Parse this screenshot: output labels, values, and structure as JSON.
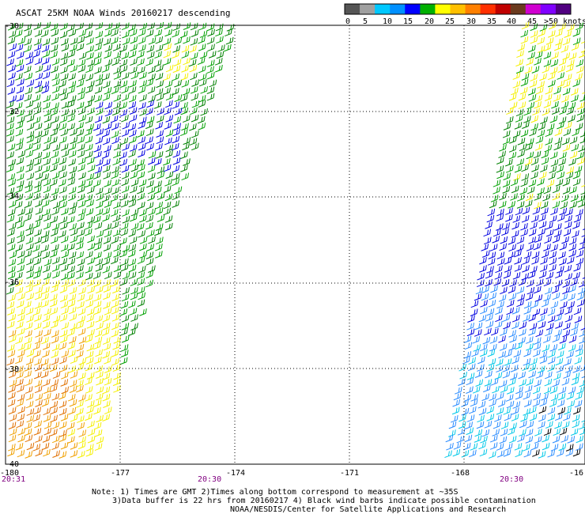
{
  "title": "ASCAT 25KM NOAA Winds 20160217 descending",
  "legend": {
    "unit_label": ">50 knots",
    "ticks": [
      "0",
      "5",
      "10",
      "15",
      "20",
      "25",
      "30",
      "35",
      "40",
      "45"
    ],
    "colors": [
      "#555555",
      "#a0a0a0",
      "#00c8ff",
      "#0090ff",
      "#0000ff",
      "#00b000",
      "#ffff00",
      "#ffc000",
      "#ff8000",
      "#ff3000",
      "#c00000",
      "#6b3a1e",
      "#d000d0",
      "#8000ff",
      "#500080"
    ]
  },
  "map": {
    "lat_labels": [
      "-30",
      "-32",
      "-34",
      "-36",
      "-38",
      "-40"
    ],
    "lon_labels": [
      "-180",
      "-177",
      "-174",
      "-171",
      "-168",
      "-16"
    ],
    "time_labels": [
      "20:31",
      "20:30",
      "20:30"
    ]
  },
  "notes": {
    "line1": "Note: 1) Times are GMT 2)Times along bottom correspond to measurement at ~35S",
    "line2": "3)Data buffer is 22 hrs from 20160217 4) Black wind barbs indicate possible contamination",
    "line3": "NOAA/NESDIS/Center for Satellite Applications and Research"
  },
  "swaths": [
    {
      "name": "west-swath",
      "color_zones": [
        "blue",
        "green",
        "yellow",
        "orange"
      ]
    },
    {
      "name": "east-swath",
      "color_zones": [
        "yellow",
        "green",
        "blue",
        "light-blue",
        "cyan"
      ]
    }
  ]
}
